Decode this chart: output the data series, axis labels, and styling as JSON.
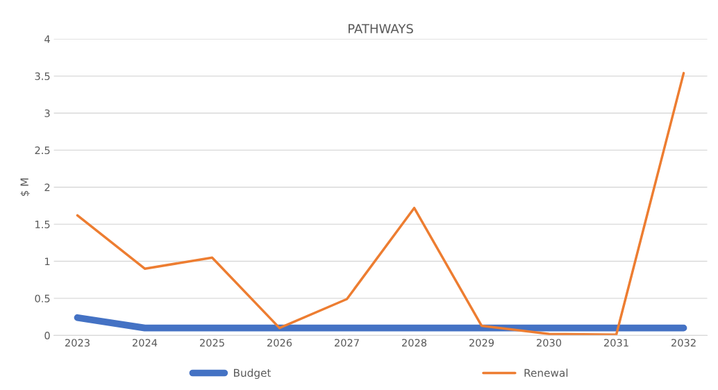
{
  "chart_data": {
    "type": "line",
    "title": "PATHWAYS",
    "ylabel": "$ M",
    "categories": [
      "2023",
      "2024",
      "2025",
      "2026",
      "2027",
      "2028",
      "2029",
      "2030",
      "2031",
      "2032"
    ],
    "series": [
      {
        "name": "Budget",
        "color": "#4472c4",
        "values": [
          0.24,
          0.1,
          0.1,
          0.1,
          0.1,
          0.1,
          0.1,
          0.1,
          0.1,
          0.1
        ]
      },
      {
        "name": "Renewal",
        "color": "#ed7d31",
        "values": [
          1.62,
          0.9,
          1.05,
          0.1,
          0.49,
          1.72,
          0.13,
          0.02,
          0.01,
          3.54
        ]
      }
    ],
    "ylim": [
      0,
      4
    ],
    "yticks": [
      0,
      0.5,
      1,
      1.5,
      2,
      2.5,
      3,
      3.5,
      4
    ],
    "grid": "y",
    "legend": "bottom",
    "marker": "none",
    "line_style": "solid"
  }
}
